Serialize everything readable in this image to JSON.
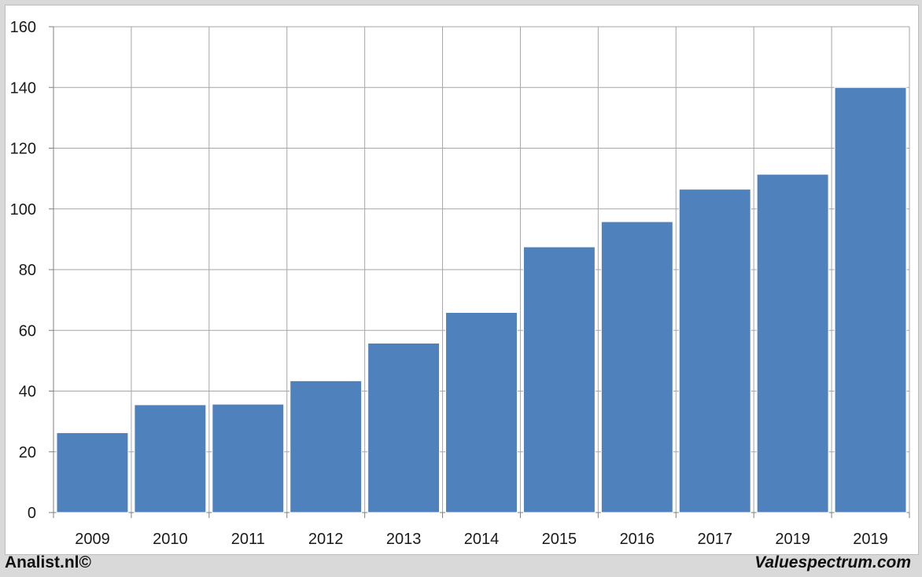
{
  "chart_data": {
    "type": "bar",
    "categories": [
      "2009",
      "2010",
      "2011",
      "2012",
      "2013",
      "2014",
      "2015",
      "2016",
      "2017",
      "2019",
      "2019"
    ],
    "values": [
      26.3,
      35.5,
      35.7,
      43.4,
      55.8,
      65.9,
      87.5,
      95.8,
      106.5,
      111.4,
      140.0
    ],
    "ylim": [
      0,
      160
    ],
    "yticks": [
      "0",
      "20",
      "40",
      "60",
      "80",
      "100",
      "120",
      "140",
      "160"
    ],
    "grid": "on",
    "legend": "none",
    "bar_color": "#4f81bd",
    "grid_color": "#a6a6a6"
  },
  "footer": {
    "left": "Analist.nl©",
    "right": "Valuespectrum.com"
  }
}
